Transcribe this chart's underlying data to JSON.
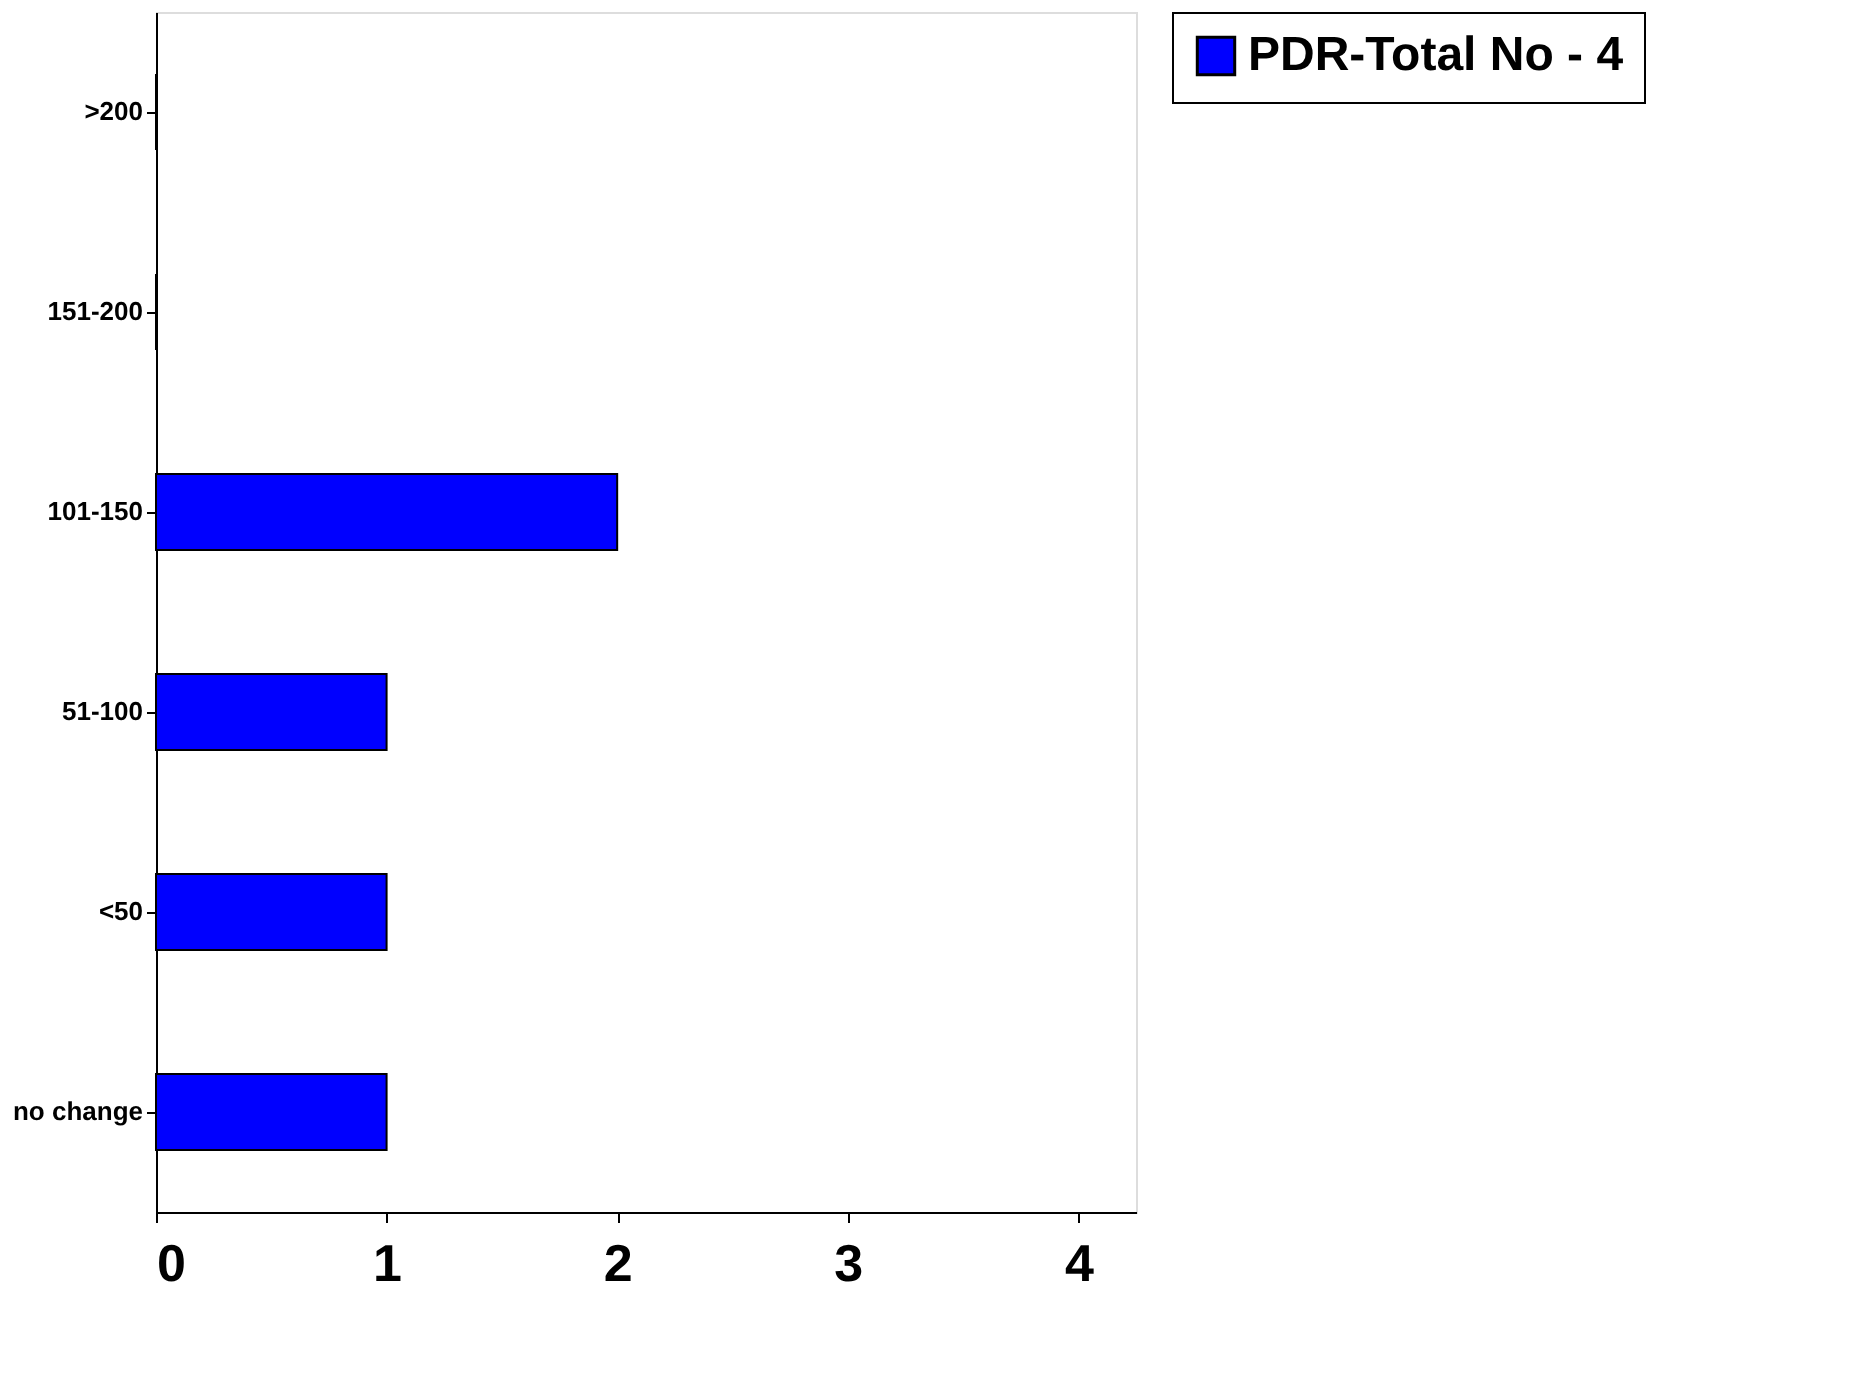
{
  "chart_data": {
    "type": "bar",
    "orientation": "horizontal",
    "categories": [
      ">200",
      "151-200",
      "101-150",
      "51-100",
      "<50",
      "no change"
    ],
    "series": [
      {
        "name": "PDR-Total No - 4",
        "color": "#0000ff",
        "values": [
          0,
          0,
          2,
          1,
          1,
          1
        ]
      }
    ],
    "xlim": [
      0,
      4.25
    ],
    "xticks": [
      0,
      1,
      2,
      3,
      4
    ],
    "grid": false,
    "legend": "right"
  }
}
